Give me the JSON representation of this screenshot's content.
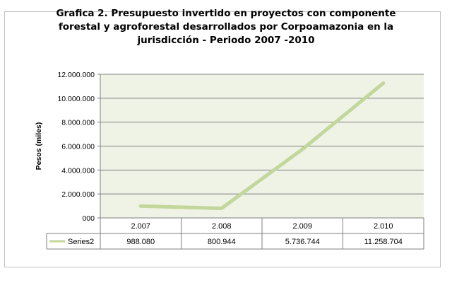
{
  "chart_data": {
    "type": "line",
    "title_lines": [
      "Grafica 2. Presupuesto invertido en proyectos con componente",
      "forestal y agroforestal  desarrollados por Corpoamazonia en la",
      "jurisdicción - Periodo 2007 -2010"
    ],
    "ylabel": "Pesos (miles)",
    "xlabel": "",
    "categories": [
      "2.007",
      "2.008",
      "2.009",
      "2.010"
    ],
    "series": [
      {
        "name": "Series2",
        "values": [
          988080,
          800944,
          5736744,
          11258704
        ],
        "labels": [
          "988.080",
          "800.944",
          "5.736.744",
          "11.258.704"
        ],
        "color": "#c3d69b"
      }
    ],
    "ylim": [
      0,
      12000000
    ],
    "yticks": [
      {
        "value": 0,
        "label": "000"
      },
      {
        "value": 2000000,
        "label": "2.000.000"
      },
      {
        "value": 4000000,
        "label": "4.000.000"
      },
      {
        "value": 6000000,
        "label": "6.000.000"
      },
      {
        "value": 8000000,
        "label": "8.000.000"
      },
      {
        "value": 10000000,
        "label": "10.000.000"
      },
      {
        "value": 12000000,
        "label": "12.000.000"
      }
    ],
    "grid": true,
    "legend": "data-table",
    "plot_background": "#eef3e6"
  }
}
